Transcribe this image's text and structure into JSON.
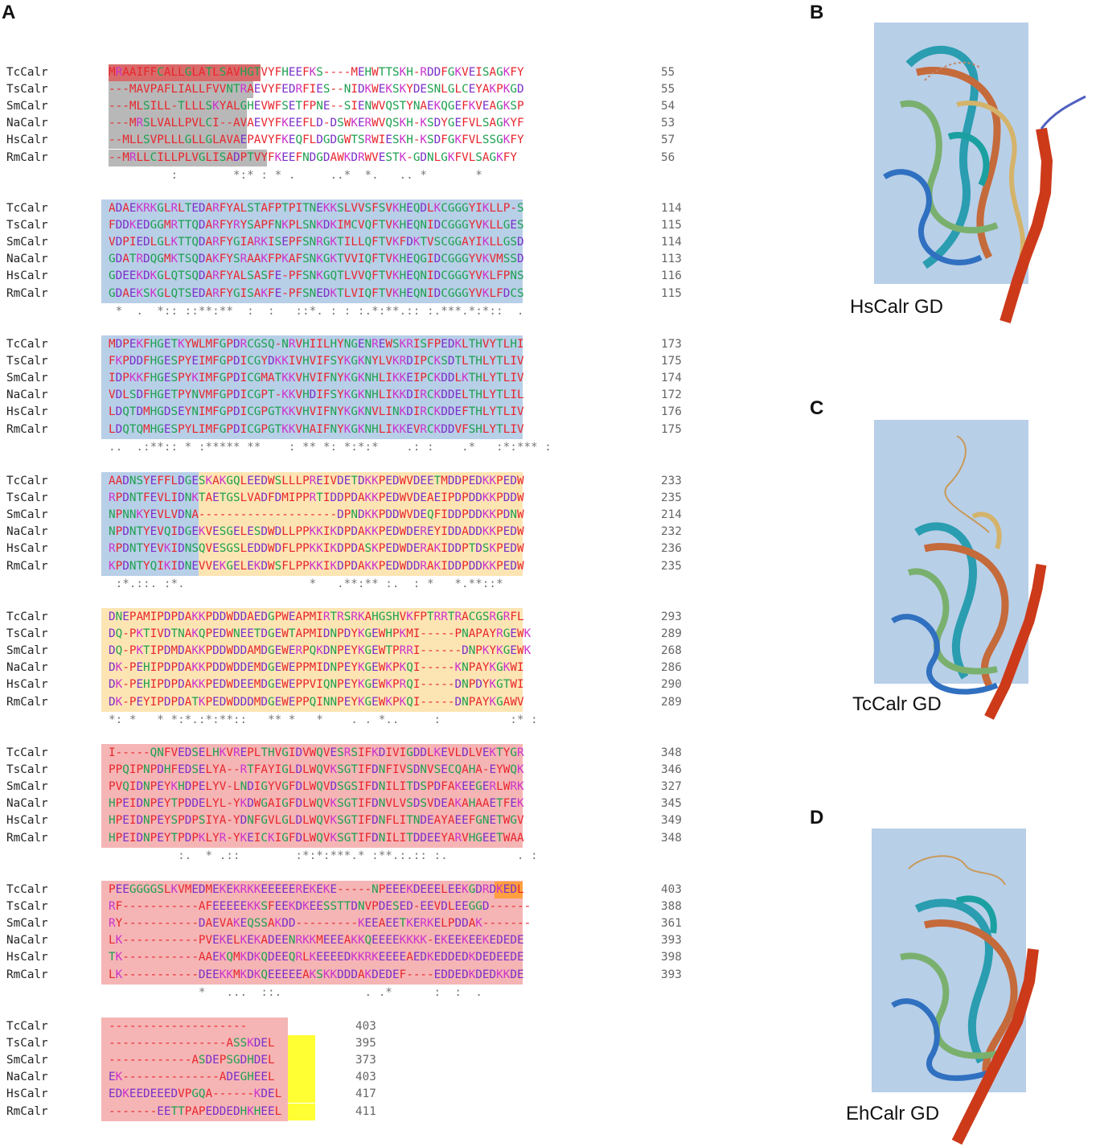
{
  "panels": {
    "A": "A",
    "B": "B",
    "C": "C",
    "D": "D"
  },
  "structure_labels": {
    "B": "HsCalr GD",
    "C": "TcCalr GD",
    "D": "EhCalr GD"
  },
  "residue_colors": {
    "acidic": "#e8262d",
    "basic": "#cc33cc",
    "hydrophobic": "#e8262d",
    "polar": "#1fa050",
    "aromatic": "#3344cc",
    "other": "#8a6d1f"
  },
  "region_colors": {
    "signal": "#b8b8b8",
    "globular": "#b8cfe8",
    "proline_rich": "#fde5b3",
    "c_terminal": "#f5b5b5",
    "retention": "#ffff33",
    "retention_orange": "#ff9f3f"
  },
  "blocks": [
    {
      "rows": [
        {
          "name": "TcCalr",
          "seq": "MRAAIFFCALLGLATLSAVHGTVYFHEEFKS----MEHWTTSKH-RDDFGKVEISAGKFY",
          "num": "55"
        },
        {
          "name": "TsCalr",
          "seq": "---MAVPAFLIALLFVVNTRAEVYFEDRFIES--NIDKWEKSKYDESNLGLCEYAKPKGD",
          "num": "55"
        },
        {
          "name": "SmCalr",
          "seq": "---MLSILL-TLLLSKYALGHEVWFSETFPNE--SIENWVQSTYNAEKQGEFKVEAGKSP",
          "num": "54"
        },
        {
          "name": "NaCalr",
          "seq": "---MRSLVALLPVLCI--AVAEVYFKEEFLD-DSWKERWVQSKH-KSDYGEFVLSAGKYF",
          "num": "53"
        },
        {
          "name": "HsCalr",
          "seq": "--MLLSVPLLLGLLGLAVAEPAVYFKEQFLDGDGWTSRWIESKH-KSDFGKFVLSSGKFY",
          "num": "57"
        },
        {
          "name": "RmCalr",
          "seq": "--MRLLCILLPLVGLISADPTVYFKEEFNDGDAWKDRWVESTK-GDNLGKFVLSAGKFY",
          "num": "56"
        }
      ],
      "cons": "         :        *:* : * .     ..*  *.   .. *       *"
    },
    {
      "rows": [
        {
          "name": "TcCalr",
          "seq": "ADAEKRKGLRLTEDARFYALSTAFPTPITNEKKSLVVSFSVKHEQDLKCGGGYIKLLP-S",
          "num": "114"
        },
        {
          "name": "TsCalr",
          "seq": "FDDKEDGGMRTTQDARFYRYSAPFNKPLSNKDKIMCVQFTVKHEQNIDCGGGYVKLLGES",
          "num": "115"
        },
        {
          "name": "SmCalr",
          "seq": "VDPIEDLGLKTTQDARFYGIARKISEPFSNRGKTILLQFTVKFDKTVSCGGAYIKLLGSD",
          "num": "114"
        },
        {
          "name": "NaCalr",
          "seq": "GDATRDQGMKTSQDAKFYSRAAKFPKAFSNKGKTVVIQFTVKHEQGIDCGGGYVKVMSSD",
          "num": "113"
        },
        {
          "name": "HsCalr",
          "seq": "GDEEKDKGLQTSQDARFYALSASFE-PFSNKGQTLVVQFTVKHEQNIDCGGGYVKLFPNS",
          "num": "116"
        },
        {
          "name": "RmCalr",
          "seq": "GDAEKSKGLQTSEDARFYGISAKFE-PFSNEDKTLVIQFTVKHEQNIDCGGGYVKLFDCS",
          "num": "115"
        }
      ],
      "cons": " *  .  *:: ::**:**  :  :   ::*. : : :.*:**.:: :.***.*:*::  ."
    },
    {
      "rows": [
        {
          "name": "TcCalr",
          "seq": "MDPEKFHGETKYWLMFGPDRCGSQ-NRVHIILHYNGENREWSKRISFPEDKLTHVYTLHI",
          "num": "173"
        },
        {
          "name": "TsCalr",
          "seq": "FKPDDFHGESPYEIMFGPDICGYDKKIVHVIFSYKGKNYLVKRDIPCKSDTLTHLYTLIV",
          "num": "175"
        },
        {
          "name": "SmCalr",
          "seq": "IDPKKFHGESPYKIMFGPDICGMATKKVHVIFNYKGKNHLIKKEIPCKDDLKTHLYTLIV",
          "num": "174"
        },
        {
          "name": "NaCalr",
          "seq": "VDLSDFHGETPYNVMFGPDICGPT-KKVHDIFSYKGKNHLIKKDIRCKDDELTHLYTLIL",
          "num": "172"
        },
        {
          "name": "HsCalr",
          "seq": "LDQTDMHGDSEYNIMFGPDICGPGTKKVHVIFNYKGKNVLINKDIRCKDDEFTHLYTLIV",
          "num": "176"
        },
        {
          "name": "RmCalr",
          "seq": "LDQTQMHGESPYLIMFGPDICGPGTKKVHAIFNYKGKNHLIKKEVRCKDDVFSHLYTLIV",
          "num": "175"
        }
      ],
      "cons": "..  .:**:: * :***** **    : ** *: *:*:*    .: :    .*   :*:*** :"
    },
    {
      "rows": [
        {
          "name": "TcCalr",
          "seq": "AADNSYEFFLDGESKAKGQLEEDWSLLLPREIVDETDKKPEDWVDEETMDDPEDKKPEDW",
          "num": "233"
        },
        {
          "name": "TsCalr",
          "seq": "RPDNTFEVLIDNKTAETGSLVADFDMIPPRTIDDPDAKKPEDWVDEAEIPDPDDKKPDDW",
          "num": "235"
        },
        {
          "name": "SmCalr",
          "seq": "NPNNKYEVLVDNA--------------------DPNDKKPDDWVDEQFIDDPDDKKPDNW",
          "num": "214"
        },
        {
          "name": "NaCalr",
          "seq": "NPDNTYEVQIDGEKVESGELESDWDLLPPKKIKDPDAKKPEDWDEREYIDDADDKKPEDW",
          "num": "232"
        },
        {
          "name": "HsCalr",
          "seq": "RPDNTYEVKIDNSQVESGSLEDDWDFLPPKKIKDPDASKPEDWDERAKIDDPTDSKPEDW",
          "num": "236"
        },
        {
          "name": "RmCalr",
          "seq": "KPDNTYQIKIDNEVVEKGELEKDWSFLPPKKIKDPDAKKPEDWDDRAKIDDPDDKKPEDW",
          "num": "235"
        }
      ],
      "cons": " :*.::. :*.                  *   .**:** :.  : *   *.**::*"
    },
    {
      "rows": [
        {
          "name": "TcCalr",
          "seq": "DNEPAMIPDPDAKKPDDWDDAEDGPWEAPMIRTRSRKAHGSHVKFPTRRTRACGSRGRFL",
          "num": "293"
        },
        {
          "name": "TsCalr",
          "seq": "DQ-PKTIVDTNAKQPEDWNEETDGEWTAPMIDNPDYKGEWHPKMI-----PNAPAYRGEWK",
          "num": "289"
        },
        {
          "name": "SmCalr",
          "seq": "DQ-PKTIPDMDAKKPDDWDDAMDGEWERPQKDNPEYKGEWTPRRI------DNPKYKGEWK",
          "num": "268"
        },
        {
          "name": "NaCalr",
          "seq": "DK-PEHIPDPDAKKPDDWDDEMDGEWEPPMIDNPEYKGEWKPKQI-----KNPAYKGKWI",
          "num": "286"
        },
        {
          "name": "HsCalr",
          "seq": "DK-PEHIPDPDAKKPEDWDEEMDGEWEPPVIQNPEYKGEWKPRQI-----DNPDYKGTWI",
          "num": "290"
        },
        {
          "name": "RmCalr",
          "seq": "DK-PEYIPDPDATKPEDWDDDMDGEWEPPQINNPEYKGEWKPKQI-----DNPAYKGAWV",
          "num": "289"
        }
      ],
      "cons": "*: *   * *:*.:*:**::   ** *   *    . . *..     :          :* :"
    },
    {
      "rows": [
        {
          "name": "TcCalr",
          "seq": "I-----QNFVEDSELHKVREPLTHVGIDVWQVESRSIFKDIVIGDDLKEVLDLVEKTYGR",
          "num": "348"
        },
        {
          "name": "TsCalr",
          "seq": "PPQIPNPDHFEDSELYA--RTFAYIGLDLWQVKSGTIFDNFIVSDNVSECQAHA-EYWQK",
          "num": "346"
        },
        {
          "name": "SmCalr",
          "seq": "PVQIDNPEYKHDPELYV-LNDIGYVGFDLWQVDSGSIFDNILITDSPDFAKEEGERLWRK",
          "num": "327"
        },
        {
          "name": "NaCalr",
          "seq": "HPEIDNPEYTPDDELYL-YKDWGAIGFDLWQVKSGTIFDNVLVSDSVDEAKAHAAETFEK",
          "num": "345"
        },
        {
          "name": "HsCalr",
          "seq": "HPEIDNPEYSPDPSIYA-YDNFGVLGLDLWQVKSGTIFDNFLITNDEAYAEEFGNETWGV",
          "num": "349"
        },
        {
          "name": "RmCalr",
          "seq": "HPEIDNPEYTPDPKLYR-YKEICKIGFDLWQVKSGTIFDNILITDDEEYARVHGEETWAA",
          "num": "348"
        }
      ],
      "cons": "          :.  * .::        :*:*:***.* :**.:.:: :.          . :"
    },
    {
      "rows": [
        {
          "name": "TcCalr",
          "seq": "PEEGGGGSLKVMEDMEKEKRKKEEEEEREKEKE-----NPEEEKDEEELEEKGDRDKEDL",
          "num": "403"
        },
        {
          "name": "TsCalr",
          "seq": "RF-----------AFEEEEEKKSFEEKDKEESSTTDNVPDESED-EEVDLEEGGD------",
          "num": "388"
        },
        {
          "name": "SmCalr",
          "seq": "RY-----------DAEVAKEQSSAKDD---------KEEAEETKERKELPDDAK-------",
          "num": "361"
        },
        {
          "name": "NaCalr",
          "seq": "LK-----------PVEKELKEKADEENRKKMEEEAKKQEEEEKKKK-EKEEKEEKEDEDE",
          "num": "393"
        },
        {
          "name": "HsCalr",
          "seq": "TK-----------AAEKQMKDKQDEEQRLKEEEEDKKRKEEEEAEDKEDDEDKDEDEEDE",
          "num": "398"
        },
        {
          "name": "RmCalr",
          "seq": "LK-----------DEEKKMKDKQEEEEEAKSKKDDDAKDEDEF----EDDEDKDEDKKDE",
          "num": "393"
        }
      ],
      "cons": "             *   ...  ::.            . .*      :  :  ."
    },
    {
      "rows": [
        {
          "name": "TcCalr",
          "seq": "--------------------",
          "num": "403"
        },
        {
          "name": "TsCalr",
          "seq": "-----------------ASSKDEL",
          "num": "395"
        },
        {
          "name": "SmCalr",
          "seq": "------------ASDEPSGDHDEL",
          "num": "373"
        },
        {
          "name": "NaCalr",
          "seq": "EK--------------ADEGHEEL",
          "num": "403"
        },
        {
          "name": "HsCalr",
          "seq": "EDKEEDEEEDVPGQA------KDEL",
          "num": "417"
        },
        {
          "name": "RmCalr",
          "seq": "-------EETTPAPEDDEDHKHEEL",
          "num": "411"
        }
      ],
      "cons": ""
    }
  ]
}
